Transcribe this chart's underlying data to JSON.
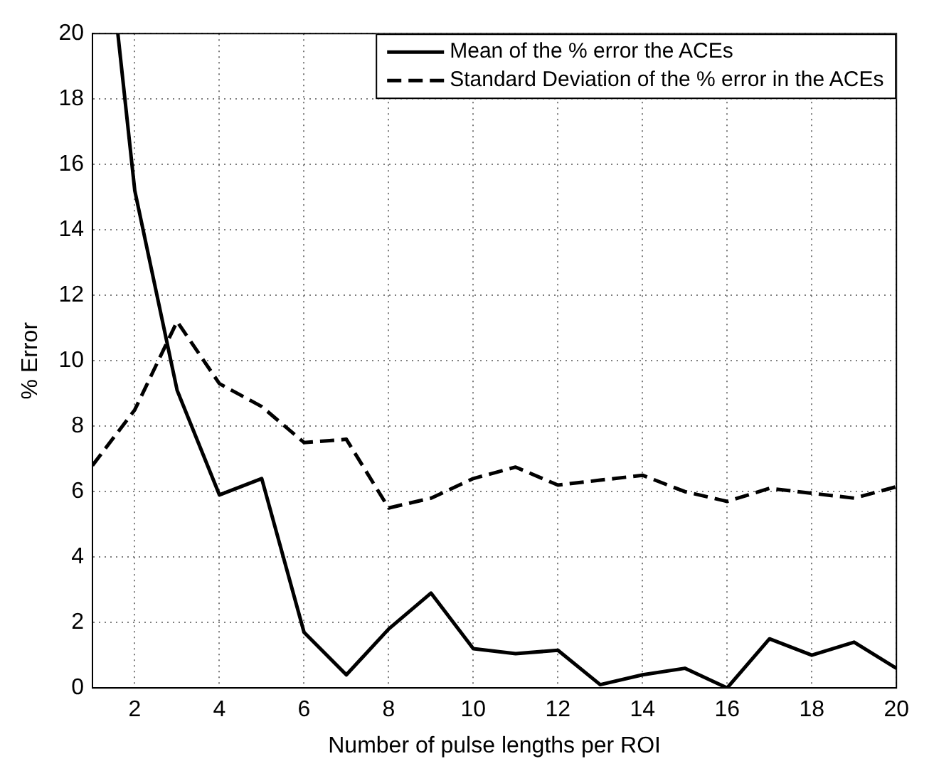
{
  "chart_data": {
    "type": "line",
    "xlabel": "Number of pulse lengths per ROI",
    "ylabel": "% Error",
    "xlim": [
      1,
      20
    ],
    "xticks": [
      2,
      4,
      6,
      8,
      10,
      12,
      14,
      16,
      18,
      20
    ],
    "ylim": [
      0,
      20
    ],
    "yticks": [
      0,
      2,
      4,
      6,
      8,
      10,
      12,
      14,
      16,
      18,
      20
    ],
    "grid": true,
    "legend": "top right",
    "marker": "none",
    "series": [
      {
        "name": "Mean of the % error the ACEs",
        "color": "#000000",
        "line_style": "solid",
        "x": [
          1.6,
          2,
          3,
          4,
          5,
          6,
          7,
          8,
          9,
          10,
          11,
          12,
          13,
          14,
          15,
          16,
          17,
          18,
          19,
          20
        ],
        "values": [
          20,
          15.2,
          9.1,
          5.9,
          6.4,
          1.7,
          0.4,
          1.8,
          2.9,
          1.2,
          1.05,
          1.15,
          0.1,
          0.4,
          0.6,
          0.0,
          1.5,
          1.0,
          1.4,
          0.6
        ]
      },
      {
        "name": "Standard Deviation of the % error in the ACEs",
        "color": "#000000",
        "line_style": "dashed",
        "x": [
          1,
          2,
          3,
          4,
          5,
          6,
          7,
          8,
          9,
          10,
          11,
          12,
          13,
          14,
          15,
          16,
          17,
          18,
          19,
          20
        ],
        "values": [
          6.8,
          8.5,
          11.2,
          9.3,
          8.6,
          7.5,
          7.6,
          5.5,
          5.8,
          6.4,
          6.75,
          6.2,
          6.35,
          6.5,
          6.0,
          5.7,
          6.1,
          5.95,
          5.8,
          6.15
        ]
      }
    ]
  }
}
